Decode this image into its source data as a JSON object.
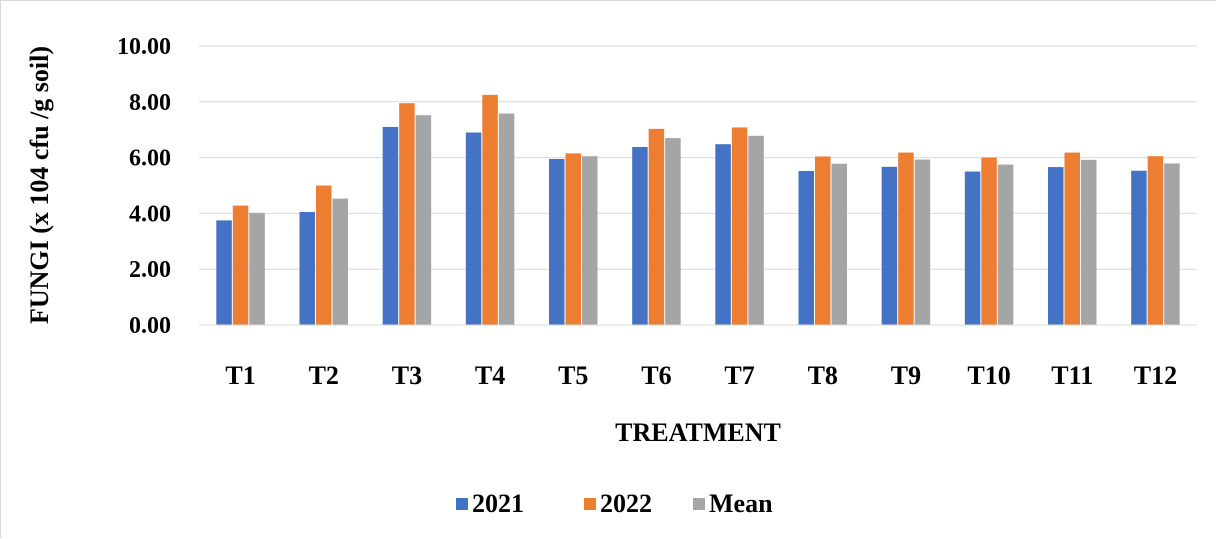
{
  "chart_data": {
    "type": "bar",
    "title": "",
    "xlabel": "TREATMENT",
    "ylabel": "FUNGI (x 104 cfu /g soil)",
    "ylim": [
      0,
      10
    ],
    "yticks": [
      "0.00",
      "2.00",
      "4.00",
      "6.00",
      "8.00",
      "10.00"
    ],
    "grid": true,
    "legend_position": "bottom",
    "categories": [
      "T1",
      "T2",
      "T3",
      "T4",
      "T5",
      "T6",
      "T7",
      "T8",
      "T9",
      "T10",
      "T11",
      "T12"
    ],
    "series": [
      {
        "name": "2021",
        "color": "#4472C4",
        "values": [
          3.75,
          4.05,
          7.1,
          6.9,
          5.95,
          6.38,
          6.48,
          5.52,
          5.67,
          5.5,
          5.66,
          5.53
        ]
      },
      {
        "name": "2022",
        "color": "#ED7D31",
        "values": [
          4.28,
          5.0,
          7.95,
          8.25,
          6.15,
          7.03,
          7.08,
          6.04,
          6.18,
          6.0,
          6.18,
          6.05
        ]
      },
      {
        "name": "Mean",
        "color": "#A5A5A5",
        "values": [
          4.02,
          4.53,
          7.52,
          7.58,
          6.05,
          6.7,
          6.78,
          5.78,
          5.93,
          5.75,
          5.92,
          5.79
        ]
      }
    ]
  }
}
